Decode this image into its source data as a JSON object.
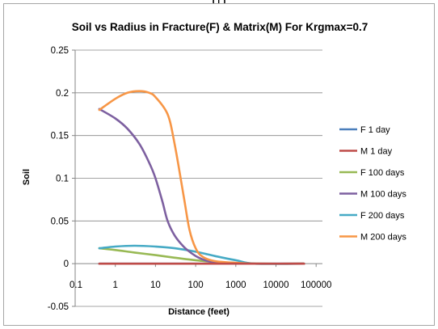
{
  "top_label": "(f)",
  "colors": {
    "F 1 day": "#4a7ebb",
    "M 1 day": "#be4b48",
    "F 100 days": "#98b954",
    "M 100 days": "#7d60a0",
    "F 200 days": "#46aac5",
    "M 200 days": "#f79646",
    "gridline": "#868686",
    "axis": "#868686"
  },
  "chart_data": {
    "type": "line",
    "title": "Soil vs Radius in Fracture(F) & Matrix(M)  For Krgmax=0.7",
    "xlabel": "Distance (feet)",
    "ylabel": "Soil",
    "x_scale": "log",
    "xlim": [
      0.1,
      100000
    ],
    "ylim": [
      -0.05,
      0.25
    ],
    "x_tick_labels": [
      "0.1",
      "1",
      "10",
      "100",
      "1000",
      "10000",
      "100000"
    ],
    "y_tick_labels": [
      "-0.05",
      "0",
      "0.05",
      "0.1",
      "0.15",
      "0.2",
      "0.25"
    ],
    "y_ticks": [
      -0.05,
      0,
      0.05,
      0.1,
      0.15,
      0.2,
      0.25
    ],
    "grid": "horizontal",
    "legend_position": "right",
    "series": [
      {
        "name": "F 1 day",
        "points": [
          [
            0.4,
            0
          ],
          [
            50000,
            0
          ]
        ]
      },
      {
        "name": "M 1 day",
        "points": [
          [
            0.4,
            0
          ],
          [
            50000,
            0
          ]
        ]
      },
      {
        "name": "F 100 days",
        "points": [
          [
            0.4,
            0.018
          ],
          [
            1,
            0.016
          ],
          [
            3,
            0.013
          ],
          [
            10,
            0.01
          ],
          [
            30,
            0.007
          ],
          [
            100,
            0.004
          ],
          [
            300,
            0.002
          ],
          [
            1000,
            0.0005
          ],
          [
            3000,
            0
          ],
          [
            50000,
            0
          ]
        ]
      },
      {
        "name": "M 100 days",
        "points": [
          [
            0.4,
            0.181
          ],
          [
            1,
            0.17
          ],
          [
            2,
            0.158
          ],
          [
            4,
            0.14
          ],
          [
            7,
            0.118
          ],
          [
            10,
            0.1
          ],
          [
            15,
            0.072
          ],
          [
            20,
            0.05
          ],
          [
            30,
            0.033
          ],
          [
            50,
            0.02
          ],
          [
            80,
            0.012
          ],
          [
            120,
            0.007
          ],
          [
            200,
            0.003
          ],
          [
            400,
            0.001
          ],
          [
            1000,
            0
          ],
          [
            50000,
            0
          ]
        ]
      },
      {
        "name": "F 200 days",
        "points": [
          [
            0.4,
            0.018
          ],
          [
            1,
            0.02
          ],
          [
            3,
            0.021
          ],
          [
            10,
            0.02
          ],
          [
            30,
            0.018
          ],
          [
            100,
            0.014
          ],
          [
            300,
            0.009
          ],
          [
            1000,
            0.004
          ],
          [
            3000,
            0
          ],
          [
            50000,
            0
          ]
        ]
      },
      {
        "name": "M 200 days",
        "points": [
          [
            0.4,
            0.18
          ],
          [
            1,
            0.193
          ],
          [
            2,
            0.2
          ],
          [
            4,
            0.202
          ],
          [
            7,
            0.2
          ],
          [
            10,
            0.195
          ],
          [
            20,
            0.175
          ],
          [
            30,
            0.14
          ],
          [
            50,
            0.08
          ],
          [
            70,
            0.04
          ],
          [
            100,
            0.018
          ],
          [
            150,
            0.008
          ],
          [
            300,
            0.003
          ],
          [
            1000,
            0.001
          ],
          [
            3000,
            0
          ],
          [
            50000,
            0
          ]
        ]
      }
    ]
  }
}
